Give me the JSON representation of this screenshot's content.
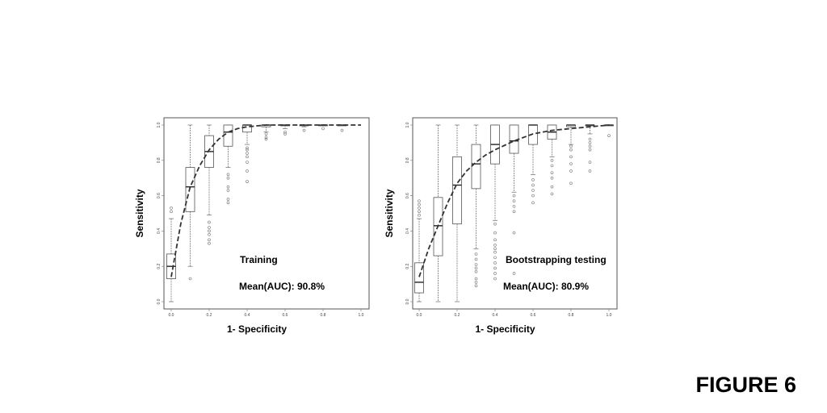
{
  "figure_label": "FIGURE 6",
  "chart_data": [
    {
      "type": "box",
      "xlabel": "1- Specificity",
      "ylabel": "Sensitivity",
      "xlim": [
        0,
        1
      ],
      "ylim": [
        0,
        1
      ],
      "x_ticks": [
        "0.0",
        "0.2",
        "0.4",
        "0.6",
        "0.8",
        "1.0"
      ],
      "y_ticks": [
        "0.0",
        "0.2",
        "0.4",
        "0.6",
        "0.8",
        "1.0"
      ],
      "annotations": {
        "name": "Training",
        "auc": "Mean(AUC): 90.8%"
      },
      "mean_curve": {
        "x": [
          0.0,
          0.05,
          0.1,
          0.15,
          0.2,
          0.25,
          0.3,
          0.35,
          0.4,
          0.5,
          0.6,
          0.7,
          0.8,
          0.9,
          1.0
        ],
        "y": [
          0.14,
          0.44,
          0.65,
          0.77,
          0.86,
          0.92,
          0.96,
          0.98,
          0.99,
          1.0,
          1.0,
          1.0,
          1.0,
          1.0,
          1.0
        ]
      },
      "boxes": [
        {
          "x": 0.0,
          "min": 0.0,
          "q1": 0.13,
          "median": 0.2,
          "q3": 0.27,
          "max": 0.47,
          "outliers": [
            0.51,
            0.53
          ]
        },
        {
          "x": 0.1,
          "min": 0.2,
          "q1": 0.51,
          "median": 0.65,
          "q3": 0.76,
          "max": 1.0,
          "outliers": [
            0.13
          ]
        },
        {
          "x": 0.2,
          "min": 0.49,
          "q1": 0.76,
          "median": 0.85,
          "q3": 0.94,
          "max": 1.0,
          "outliers": [
            0.33,
            0.35,
            0.38,
            0.4,
            0.42,
            0.45
          ]
        },
        {
          "x": 0.3,
          "min": 0.76,
          "q1": 0.88,
          "median": 0.96,
          "q3": 1.0,
          "max": 1.0,
          "outliers": [
            0.56,
            0.58,
            0.63,
            0.65,
            0.7,
            0.72
          ]
        },
        {
          "x": 0.4,
          "min": 0.89,
          "q1": 0.96,
          "median": 1.0,
          "q3": 1.0,
          "max": 1.0,
          "outliers": [
            0.68,
            0.74,
            0.79,
            0.82,
            0.84,
            0.86,
            0.87
          ]
        },
        {
          "x": 0.5,
          "min": 0.96,
          "q1": 0.99,
          "median": 1.0,
          "q3": 1.0,
          "max": 1.0,
          "outliers": [
            0.92,
            0.93,
            0.95
          ]
        },
        {
          "x": 0.6,
          "min": 0.98,
          "q1": 1.0,
          "median": 1.0,
          "q3": 1.0,
          "max": 1.0,
          "outliers": [
            0.95,
            0.96
          ]
        },
        {
          "x": 0.7,
          "min": 0.99,
          "q1": 1.0,
          "median": 1.0,
          "q3": 1.0,
          "max": 1.0,
          "outliers": [
            0.97
          ]
        },
        {
          "x": 0.8,
          "min": 1.0,
          "q1": 1.0,
          "median": 1.0,
          "q3": 1.0,
          "max": 1.0,
          "outliers": [
            0.98
          ]
        },
        {
          "x": 0.9,
          "min": 1.0,
          "q1": 1.0,
          "median": 1.0,
          "q3": 1.0,
          "max": 1.0,
          "outliers": [
            0.97
          ]
        }
      ]
    },
    {
      "type": "box",
      "xlabel": "1- Specificity",
      "ylabel": "Sensitivity",
      "xlim": [
        0,
        1
      ],
      "ylim": [
        0,
        1
      ],
      "x_ticks": [
        "0.0",
        "0.2",
        "0.4",
        "0.6",
        "0.8",
        "1.0"
      ],
      "y_ticks": [
        "0.0",
        "0.2",
        "0.4",
        "0.6",
        "0.8",
        "1.0"
      ],
      "annotations": {
        "name": "Bootstrapping testing",
        "auc": "Mean(AUC): 80.9%"
      },
      "mean_curve": {
        "x": [
          0.0,
          0.05,
          0.1,
          0.15,
          0.2,
          0.25,
          0.3,
          0.35,
          0.4,
          0.5,
          0.6,
          0.7,
          0.8,
          0.9,
          1.0
        ],
        "y": [
          0.14,
          0.3,
          0.43,
          0.56,
          0.67,
          0.74,
          0.79,
          0.83,
          0.86,
          0.91,
          0.95,
          0.97,
          0.98,
          0.99,
          1.0
        ]
      },
      "boxes": [
        {
          "x": 0.0,
          "min": 0.0,
          "q1": 0.05,
          "median": 0.11,
          "q3": 0.22,
          "max": 0.47,
          "outliers": [
            0.49,
            0.51,
            0.53,
            0.55,
            0.57
          ]
        },
        {
          "x": 0.1,
          "min": 0.0,
          "q1": 0.26,
          "median": 0.43,
          "q3": 0.59,
          "max": 1.0,
          "outliers": []
        },
        {
          "x": 0.2,
          "min": 0.0,
          "q1": 0.44,
          "median": 0.66,
          "q3": 0.82,
          "max": 1.0,
          "outliers": []
        },
        {
          "x": 0.3,
          "min": 0.3,
          "q1": 0.64,
          "median": 0.78,
          "q3": 0.89,
          "max": 1.0,
          "outliers": [
            0.09,
            0.11,
            0.13,
            0.17,
            0.19,
            0.21,
            0.24,
            0.27
          ]
        },
        {
          "x": 0.4,
          "min": 0.46,
          "q1": 0.78,
          "median": 0.89,
          "q3": 1.0,
          "max": 1.0,
          "outliers": [
            0.13,
            0.16,
            0.19,
            0.22,
            0.25,
            0.28,
            0.3,
            0.32,
            0.35,
            0.39,
            0.44
          ]
        },
        {
          "x": 0.5,
          "min": 0.62,
          "q1": 0.84,
          "median": 0.91,
          "q3": 1.0,
          "max": 1.0,
          "outliers": [
            0.16,
            0.39,
            0.51,
            0.54,
            0.57,
            0.6
          ]
        },
        {
          "x": 0.6,
          "min": 0.72,
          "q1": 0.89,
          "median": 1.0,
          "q3": 1.0,
          "max": 1.0,
          "outliers": [
            0.56,
            0.6,
            0.63,
            0.66,
            0.69
          ]
        },
        {
          "x": 0.7,
          "min": 0.82,
          "q1": 0.92,
          "median": 0.96,
          "q3": 1.0,
          "max": 1.0,
          "outliers": [
            0.61,
            0.65,
            0.7,
            0.73,
            0.77,
            0.8
          ]
        },
        {
          "x": 0.8,
          "min": 0.89,
          "q1": 0.99,
          "median": 1.0,
          "q3": 1.0,
          "max": 1.0,
          "outliers": [
            0.67,
            0.74,
            0.78,
            0.82,
            0.86,
            0.88
          ]
        },
        {
          "x": 0.9,
          "min": 0.95,
          "q1": 1.0,
          "median": 1.0,
          "q3": 1.0,
          "max": 1.0,
          "outliers": [
            0.74,
            0.79,
            0.86,
            0.88,
            0.9,
            0.92
          ]
        },
        {
          "x": 1.0,
          "min": 1.0,
          "q1": 1.0,
          "median": 1.0,
          "q3": 1.0,
          "max": 1.0,
          "outliers": [
            0.94
          ]
        }
      ]
    }
  ]
}
